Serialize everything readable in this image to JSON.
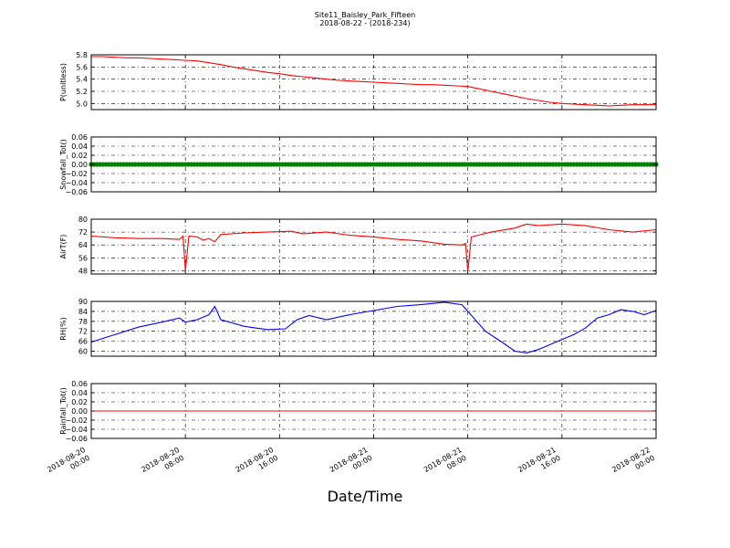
{
  "title_line1": "Site11_Baisley_Park_Fifteen",
  "title_line2": "2018-08-22 - (2018-234)",
  "xlabel": "Date/Time",
  "x_tick_labels": [
    [
      "2018-08-20",
      "00:00"
    ],
    [
      "2018-08-20",
      "08:00"
    ],
    [
      "2018-08-20",
      "16:00"
    ],
    [
      "2018-08-21",
      "00:00"
    ],
    [
      "2018-08-21",
      "08:00"
    ],
    [
      "2018-08-21",
      "16:00"
    ],
    [
      "2018-08-22",
      "00:00"
    ]
  ],
  "colors": {
    "red": "#ff0000",
    "green": "#008000",
    "blue": "#0000ff",
    "grid": "#000000"
  },
  "chart_data": [
    {
      "type": "line",
      "ylabel": "P(unitless)",
      "ylim": [
        4.9,
        5.8
      ],
      "yticks": [
        5.0,
        5.2,
        5.4,
        5.6,
        5.8
      ],
      "ytick_labels": [
        "5.0",
        "5.2",
        "5.4",
        "5.6",
        "5.8"
      ],
      "xlim": [
        0,
        48
      ],
      "grid": true,
      "series": [
        {
          "color": "red",
          "style": "line",
          "points": [
            [
              0,
              5.77
            ],
            [
              1,
              5.77
            ],
            [
              2,
              5.76
            ],
            [
              3,
              5.75
            ],
            [
              4,
              5.75
            ],
            [
              5,
              5.74
            ],
            [
              6,
              5.73
            ],
            [
              7,
              5.72
            ],
            [
              8,
              5.71
            ],
            [
              9,
              5.7
            ],
            [
              10,
              5.67
            ],
            [
              11,
              5.64
            ],
            [
              12,
              5.6
            ],
            [
              13,
              5.57
            ],
            [
              14,
              5.54
            ],
            [
              15,
              5.51
            ],
            [
              16,
              5.49
            ],
            [
              17,
              5.46
            ],
            [
              18,
              5.44
            ],
            [
              19,
              5.42
            ],
            [
              20,
              5.4
            ],
            [
              21,
              5.38
            ],
            [
              22,
              5.37
            ],
            [
              23,
              5.36
            ],
            [
              24,
              5.35
            ],
            [
              25,
              5.34
            ],
            [
              26,
              5.33
            ],
            [
              27,
              5.32
            ],
            [
              28,
              5.31
            ],
            [
              29,
              5.31
            ],
            [
              30,
              5.3
            ],
            [
              31,
              5.29
            ],
            [
              32,
              5.28
            ],
            [
              33,
              5.24
            ],
            [
              34,
              5.2
            ],
            [
              35,
              5.16
            ],
            [
              36,
              5.12
            ],
            [
              37,
              5.08
            ],
            [
              38,
              5.05
            ],
            [
              39,
              5.02
            ],
            [
              40,
              5.0
            ],
            [
              41,
              4.99
            ],
            [
              42,
              4.98
            ],
            [
              43,
              4.97
            ],
            [
              44,
              4.96
            ],
            [
              45,
              4.97
            ],
            [
              46,
              4.98
            ],
            [
              47,
              4.98
            ],
            [
              48,
              4.98
            ]
          ]
        }
      ]
    },
    {
      "type": "scatter",
      "ylabel": "Snowfall_Tot()",
      "ylim": [
        -0.06,
        0.06
      ],
      "yticks": [
        -0.06,
        -0.04,
        -0.02,
        0.0,
        0.02,
        0.04,
        0.06
      ],
      "ytick_labels": [
        "−0.06",
        "−0.04",
        "−0.02",
        "0.00",
        "0.02",
        "0.04",
        "0.06"
      ],
      "xlim": [
        0,
        48
      ],
      "grid": true,
      "series": [
        {
          "color": "green",
          "style": "markers",
          "constant": 0.0,
          "x_range": [
            0,
            48
          ]
        }
      ]
    },
    {
      "type": "line",
      "ylabel": "AirT(F)",
      "ylim": [
        46,
        80
      ],
      "yticks": [
        48,
        56,
        64,
        72,
        80
      ],
      "ytick_labels": [
        "48",
        "56",
        "64",
        "72",
        "80"
      ],
      "xlim": [
        0,
        48
      ],
      "grid": true,
      "series": [
        {
          "color": "red",
          "style": "line",
          "points": [
            [
              0,
              69.5
            ],
            [
              2,
              68.5
            ],
            [
              4,
              68.0
            ],
            [
              6,
              68.0
            ],
            [
              7.5,
              67.5
            ],
            [
              7.8,
              69.5
            ],
            [
              8,
              48.0
            ],
            [
              8.3,
              69.5
            ],
            [
              9,
              69.0
            ],
            [
              9.5,
              67.0
            ],
            [
              10,
              68.0
            ],
            [
              10.5,
              66.0
            ],
            [
              11,
              70.5
            ],
            [
              13,
              71.5
            ],
            [
              15,
              72.0
            ],
            [
              17,
              72.5
            ],
            [
              18,
              71.0
            ],
            [
              20,
              72.0
            ],
            [
              22,
              70.0
            ],
            [
              24,
              69.0
            ],
            [
              26,
              67.5
            ],
            [
              28,
              66.5
            ],
            [
              30,
              64.5
            ],
            [
              31.5,
              64.0
            ],
            [
              31.8,
              65.0
            ],
            [
              32,
              47.5
            ],
            [
              32.3,
              69.0
            ],
            [
              34,
              72.0
            ],
            [
              36,
              74.5
            ],
            [
              37,
              77.0
            ],
            [
              38,
              76.0
            ],
            [
              40,
              77.0
            ],
            [
              42,
              76.0
            ],
            [
              44,
              73.5
            ],
            [
              46,
              72.0
            ],
            [
              48,
              73.5
            ]
          ]
        }
      ]
    },
    {
      "type": "line",
      "ylabel": "RH(%)",
      "ylim": [
        57,
        90
      ],
      "yticks": [
        60,
        66,
        72,
        78,
        84,
        90
      ],
      "ytick_labels": [
        "60",
        "66",
        "72",
        "78",
        "84",
        "90"
      ],
      "xlim": [
        0,
        48
      ],
      "grid": true,
      "series": [
        {
          "color": "blue",
          "style": "line",
          "points": [
            [
              0,
              65.5
            ],
            [
              2,
              70.0
            ],
            [
              4,
              74.5
            ],
            [
              6,
              77.5
            ],
            [
              7.5,
              80.0
            ],
            [
              8,
              77.5
            ],
            [
              9,
              79.0
            ],
            [
              10,
              82.0
            ],
            [
              10.5,
              87.0
            ],
            [
              11,
              79.0
            ],
            [
              13,
              75.0
            ],
            [
              15,
              73.0
            ],
            [
              16.5,
              73.5
            ],
            [
              17.5,
              79.0
            ],
            [
              18.5,
              81.5
            ],
            [
              20,
              79.0
            ],
            [
              22,
              82.0
            ],
            [
              24,
              84.5
            ],
            [
              26,
              87.0
            ],
            [
              28,
              88.0
            ],
            [
              30,
              89.5
            ],
            [
              31.5,
              88.0
            ],
            [
              32,
              84.0
            ],
            [
              33.5,
              72.0
            ],
            [
              35,
              65.0
            ],
            [
              36,
              60.0
            ],
            [
              37,
              59.0
            ],
            [
              38,
              61.0
            ],
            [
              39,
              64.0
            ],
            [
              40,
              67.0
            ],
            [
              41,
              70.0
            ],
            [
              42,
              74.0
            ],
            [
              43,
              80.0
            ],
            [
              44,
              82.0
            ],
            [
              45,
              85.0
            ],
            [
              46,
              84.0
            ],
            [
              47,
              82.0
            ],
            [
              48,
              84.5
            ]
          ]
        }
      ]
    },
    {
      "type": "line",
      "ylabel": "Rainfall_Tot()",
      "ylim": [
        -0.06,
        0.06
      ],
      "yticks": [
        -0.06,
        -0.04,
        -0.02,
        0.0,
        0.02,
        0.04,
        0.06
      ],
      "ytick_labels": [
        "−0.06",
        "−0.04",
        "−0.02",
        "0.00",
        "0.02",
        "0.04",
        "0.06"
      ],
      "xlim": [
        0,
        48
      ],
      "grid": true,
      "series": [
        {
          "color": "red",
          "style": "line",
          "points": [
            [
              0,
              0.0
            ],
            [
              48,
              0.0
            ]
          ]
        }
      ]
    }
  ]
}
